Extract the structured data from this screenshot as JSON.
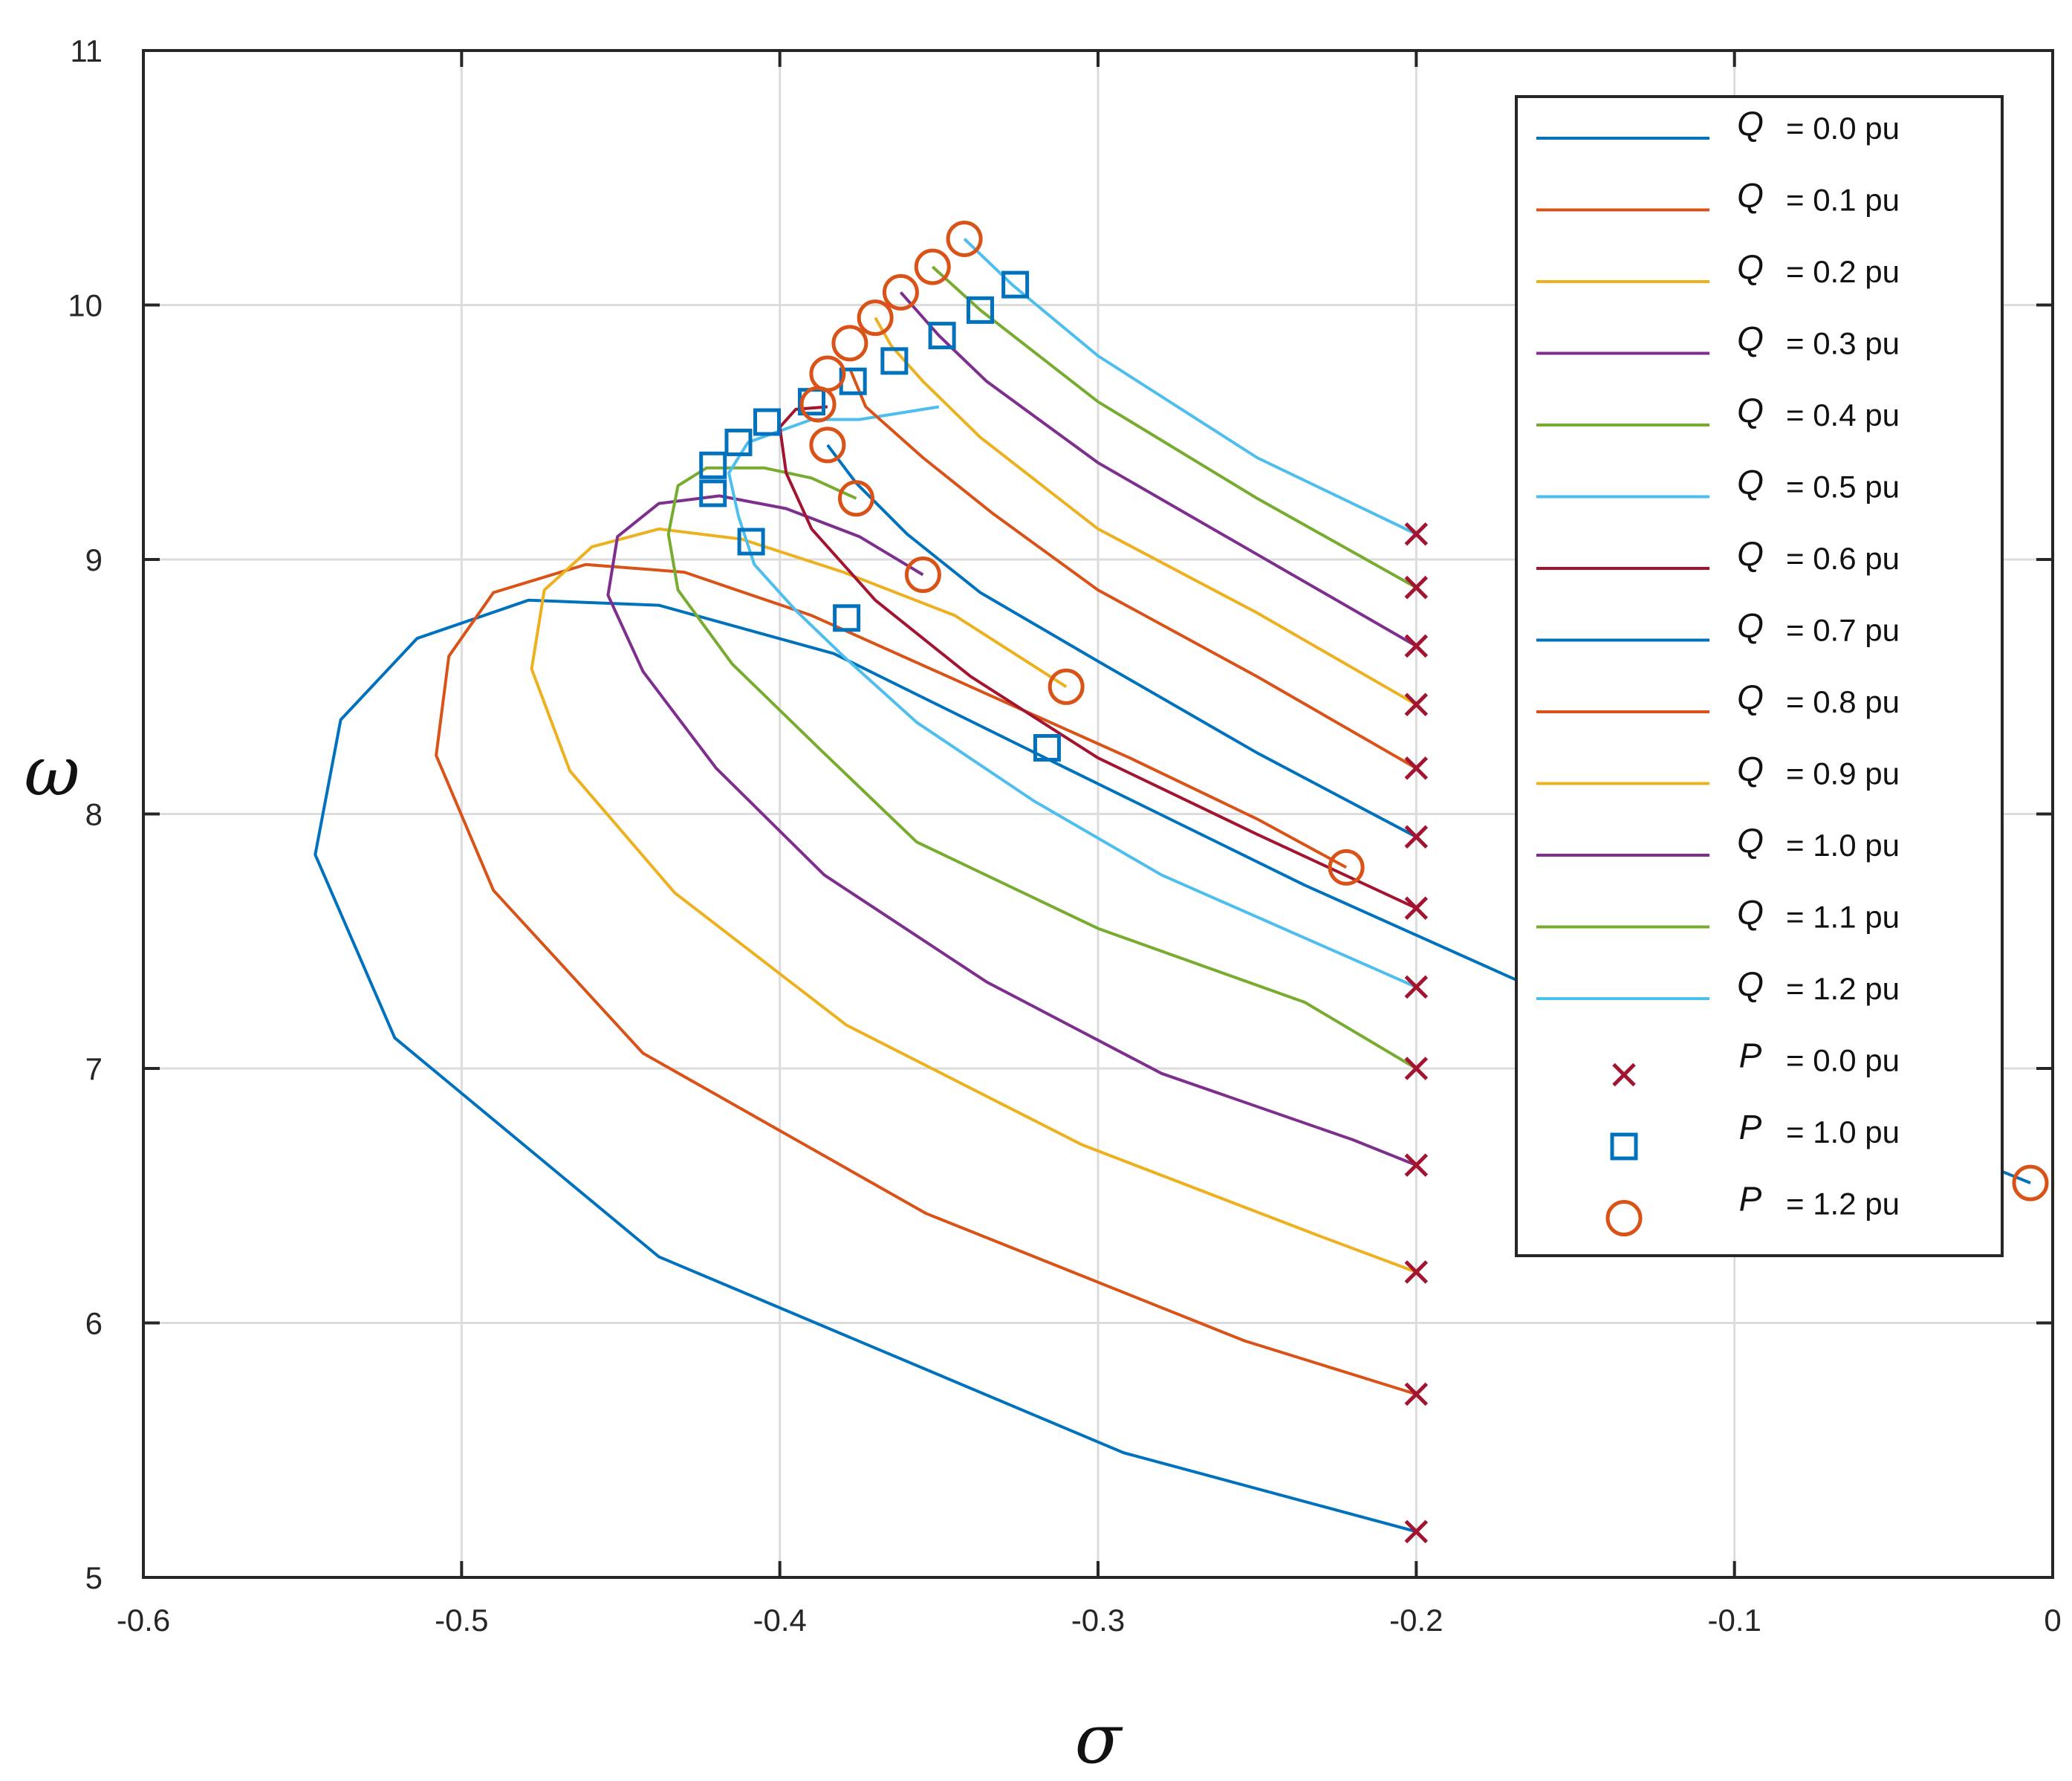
{
  "chart_data": {
    "type": "line",
    "title": "",
    "xlabel": "σ",
    "ylabel": "ω",
    "xlim": [
      -0.6,
      0
    ],
    "ylim": [
      5,
      11
    ],
    "grid": true,
    "legend_position": "top-right",
    "x_ticks": [
      -0.6,
      -0.5,
      -0.4,
      -0.3,
      -0.2,
      -0.1,
      0
    ],
    "x_tick_labels": [
      "-0.6",
      "-0.5",
      "-0.4",
      "-0.3",
      "-0.2",
      "-0.1",
      "0"
    ],
    "y_ticks": [
      5,
      6,
      7,
      8,
      9,
      10,
      11
    ],
    "y_tick_labels": [
      "5",
      "6",
      "7",
      "8",
      "9",
      "10",
      "11"
    ],
    "series": [
      {
        "name": "Q = 0.0 pu",
        "q_label": "= 0.0 pu",
        "color": "#0072BD",
        "points": [
          [
            -0.2,
            5.18
          ],
          [
            -0.292,
            5.49
          ],
          [
            -0.438,
            6.26
          ],
          [
            -0.521,
            7.12
          ],
          [
            -0.546,
            7.84
          ],
          [
            -0.538,
            8.37
          ],
          [
            -0.514,
            8.69
          ],
          [
            -0.479,
            8.84
          ],
          [
            -0.438,
            8.82
          ],
          [
            -0.383,
            8.63
          ],
          [
            -0.31,
            8.18
          ],
          [
            -0.235,
            7.72
          ],
          [
            -0.16,
            7.3
          ],
          [
            -0.08,
            6.92
          ],
          [
            -0.007,
            6.55
          ]
        ]
      },
      {
        "name": "Q = 0.1 pu",
        "q_label": "= 0.1 pu",
        "color": "#D95319",
        "points": [
          [
            -0.2,
            5.72
          ],
          [
            -0.254,
            5.93
          ],
          [
            -0.354,
            6.43
          ],
          [
            -0.443,
            7.06
          ],
          [
            -0.49,
            7.7
          ],
          [
            -0.508,
            8.23
          ],
          [
            -0.504,
            8.62
          ],
          [
            -0.49,
            8.87
          ],
          [
            -0.461,
            8.98
          ],
          [
            -0.43,
            8.95
          ],
          [
            -0.39,
            8.78
          ],
          [
            -0.34,
            8.5
          ],
          [
            -0.29,
            8.22
          ],
          [
            -0.25,
            7.98
          ],
          [
            -0.222,
            7.79
          ]
        ]
      },
      {
        "name": "Q = 0.2 pu",
        "q_label": "= 0.2 pu",
        "color": "#EDB120",
        "points": [
          [
            -0.2,
            6.2
          ],
          [
            -0.23,
            6.34
          ],
          [
            -0.305,
            6.7
          ],
          [
            -0.379,
            7.17
          ],
          [
            -0.433,
            7.69
          ],
          [
            -0.466,
            8.17
          ],
          [
            -0.478,
            8.57
          ],
          [
            -0.474,
            8.88
          ],
          [
            -0.459,
            9.05
          ],
          [
            -0.438,
            9.12
          ],
          [
            -0.412,
            9.08
          ],
          [
            -0.38,
            8.95
          ],
          [
            -0.345,
            8.78
          ],
          [
            -0.31,
            8.5
          ]
        ]
      },
      {
        "name": "Q = 0.3 pu",
        "q_label": "= 0.3 pu",
        "color": "#7E2F8E",
        "points": [
          [
            -0.2,
            6.62
          ],
          [
            -0.22,
            6.72
          ],
          [
            -0.28,
            6.98
          ],
          [
            -0.335,
            7.34
          ],
          [
            -0.386,
            7.76
          ],
          [
            -0.42,
            8.18
          ],
          [
            -0.443,
            8.56
          ],
          [
            -0.454,
            8.86
          ],
          [
            -0.451,
            9.09
          ],
          [
            -0.438,
            9.22
          ],
          [
            -0.419,
            9.25
          ],
          [
            -0.398,
            9.2
          ],
          [
            -0.375,
            9.09
          ],
          [
            -0.355,
            8.94
          ]
        ]
      },
      {
        "name": "Q = 0.4 pu",
        "q_label": "= 0.4 pu",
        "color": "#77AC30",
        "points": [
          [
            -0.2,
            7.0
          ],
          [
            -0.235,
            7.26
          ],
          [
            -0.3,
            7.55
          ],
          [
            -0.357,
            7.89
          ],
          [
            -0.387,
            8.25
          ],
          [
            -0.415,
            8.59
          ],
          [
            -0.432,
            8.88
          ],
          [
            -0.435,
            9.1
          ],
          [
            -0.432,
            9.29
          ],
          [
            -0.423,
            9.36
          ],
          [
            -0.405,
            9.36
          ],
          [
            -0.39,
            9.32
          ],
          [
            -0.376,
            9.24
          ]
        ]
      },
      {
        "name": "Q = 0.5 pu",
        "q_label": "= 0.5 pu",
        "color": "#4DBEEE",
        "points": [
          [
            -0.2,
            7.32
          ],
          [
            -0.28,
            7.76
          ],
          [
            -0.32,
            8.05
          ],
          [
            -0.357,
            8.36
          ],
          [
            -0.38,
            8.62
          ],
          [
            -0.395,
            8.8
          ],
          [
            -0.408,
            8.98
          ],
          [
            -0.413,
            9.17
          ],
          [
            -0.416,
            9.34
          ],
          [
            -0.41,
            9.46
          ],
          [
            -0.39,
            9.55
          ],
          [
            -0.375,
            9.55
          ],
          [
            -0.35,
            9.6
          ]
        ]
      },
      {
        "name": "Q = 0.6 pu",
        "q_label": "= 0.6 pu",
        "color": "#A2142F",
        "points": [
          [
            -0.2,
            7.63
          ],
          [
            -0.25,
            7.92
          ],
          [
            -0.3,
            8.22
          ],
          [
            -0.34,
            8.54
          ],
          [
            -0.37,
            8.84
          ],
          [
            -0.39,
            9.12
          ],
          [
            -0.398,
            9.34
          ],
          [
            -0.4,
            9.52
          ],
          [
            -0.395,
            9.59
          ],
          [
            -0.385,
            9.6
          ]
        ]
      },
      {
        "name": "Q = 0.7 pu",
        "q_label": "= 0.7 pu",
        "color": "#0072BD",
        "points": [
          [
            -0.2,
            7.91
          ],
          [
            -0.25,
            8.24
          ],
          [
            -0.3,
            8.6
          ],
          [
            -0.337,
            8.87
          ],
          [
            -0.36,
            9.1
          ],
          [
            -0.376,
            9.3
          ],
          [
            -0.385,
            9.45
          ]
        ]
      },
      {
        "name": "Q = 0.8 pu",
        "q_label": "= 0.8 pu",
        "color": "#D95319",
        "points": [
          [
            -0.2,
            8.18
          ],
          [
            -0.25,
            8.54
          ],
          [
            -0.3,
            8.88
          ],
          [
            -0.333,
            9.18
          ],
          [
            -0.355,
            9.4
          ],
          [
            -0.373,
            9.6
          ],
          [
            -0.378,
            9.75
          ]
        ]
      },
      {
        "name": "Q = 0.9 pu",
        "q_label": "= 0.9 pu",
        "color": "#EDB120",
        "points": [
          [
            -0.2,
            8.43
          ],
          [
            -0.25,
            8.79
          ],
          [
            -0.3,
            9.12
          ],
          [
            -0.337,
            9.48
          ],
          [
            -0.355,
            9.7
          ],
          [
            -0.365,
            9.84
          ],
          [
            -0.37,
            9.95
          ]
        ]
      },
      {
        "name": "Q = 1.0 pu",
        "q_label": "= 1.0 pu",
        "color": "#7E2F8E",
        "points": [
          [
            -0.2,
            8.66
          ],
          [
            -0.25,
            9.02
          ],
          [
            -0.3,
            9.38
          ],
          [
            -0.335,
            9.7
          ],
          [
            -0.35,
            9.88
          ],
          [
            -0.362,
            10.05
          ]
        ]
      },
      {
        "name": "Q = 1.1 pu",
        "q_label": "= 1.1 pu",
        "color": "#77AC30",
        "points": [
          [
            -0.2,
            8.89
          ],
          [
            -0.25,
            9.24
          ],
          [
            -0.3,
            9.62
          ],
          [
            -0.337,
            9.98
          ],
          [
            -0.352,
            10.15
          ]
        ]
      },
      {
        "name": "Q = 1.2 pu",
        "q_label": "= 1.2 pu",
        "color": "#4DBEEE",
        "points": [
          [
            -0.2,
            9.1
          ],
          [
            -0.25,
            9.4
          ],
          [
            -0.3,
            9.8
          ],
          [
            -0.327,
            10.08
          ],
          [
            -0.342,
            10.26
          ]
        ]
      }
    ],
    "markers": [
      {
        "name": "P = 0.0 pu",
        "p_label": "= 0.0 pu",
        "symbol": "x",
        "color": "#A2142F",
        "points": [
          [
            -0.2,
            5.18
          ],
          [
            -0.2,
            5.72
          ],
          [
            -0.2,
            6.2
          ],
          [
            -0.2,
            6.62
          ],
          [
            -0.2,
            7.0
          ],
          [
            -0.2,
            7.32
          ],
          [
            -0.2,
            7.63
          ],
          [
            -0.2,
            7.91
          ],
          [
            -0.2,
            8.18
          ],
          [
            -0.2,
            8.43
          ],
          [
            -0.2,
            8.66
          ],
          [
            -0.2,
            8.89
          ],
          [
            -0.2,
            9.1
          ]
        ]
      },
      {
        "name": "P = 1.0 pu",
        "p_label": "= 1.0 pu",
        "symbol": "square",
        "color": "#0072BD",
        "points": [
          [
            -0.316,
            8.26
          ],
          [
            -0.379,
            8.77
          ],
          [
            -0.409,
            9.07
          ],
          [
            -0.421,
            9.26
          ],
          [
            -0.421,
            9.37
          ],
          [
            -0.413,
            9.46
          ],
          [
            -0.404,
            9.54
          ],
          [
            -0.39,
            9.62
          ],
          [
            -0.377,
            9.7
          ],
          [
            -0.364,
            9.78
          ],
          [
            -0.349,
            9.88
          ],
          [
            -0.337,
            9.98
          ],
          [
            -0.326,
            10.08
          ]
        ]
      },
      {
        "name": "P = 1.2 pu",
        "p_label": "= 1.2 pu",
        "symbol": "circle",
        "color": "#D95319",
        "points": [
          [
            -0.007,
            6.55
          ],
          [
            -0.222,
            7.79
          ],
          [
            -0.31,
            8.5
          ],
          [
            -0.355,
            8.94
          ],
          [
            -0.376,
            9.24
          ],
          [
            -0.385,
            9.45
          ],
          [
            -0.388,
            9.61
          ],
          [
            -0.385,
            9.73
          ],
          [
            -0.378,
            9.85
          ],
          [
            -0.37,
            9.95
          ],
          [
            -0.362,
            10.05
          ],
          [
            -0.352,
            10.15
          ],
          [
            -0.342,
            10.26
          ]
        ]
      }
    ],
    "legend_symbol_q": "Q",
    "legend_symbol_p": "P"
  }
}
